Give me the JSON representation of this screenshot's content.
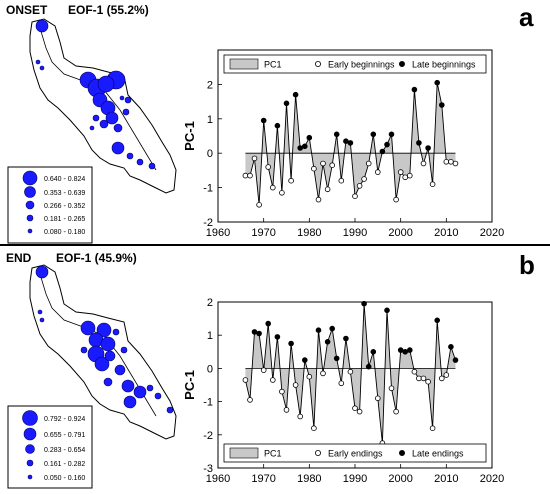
{
  "colors": {
    "marker": "#1a1aff",
    "fill": "#c8c8c8",
    "line": "#000000"
  },
  "chart_data": [
    {
      "type": "area",
      "panel_letter": "a",
      "map_title": "ONSET",
      "eof_label": "EOF-1 (55.2%)",
      "ylabel": "PC-1",
      "xlabel": "",
      "xlim": [
        1960,
        2020
      ],
      "ylim": [
        -2,
        3
      ],
      "x_ticks": [
        "1960",
        "1970",
        "1980",
        "1990",
        "2000",
        "2010",
        "2020"
      ],
      "y_ticks": [
        "-2",
        "-1",
        "0",
        "1",
        "2"
      ],
      "legend": {
        "area": "PC1",
        "open": "Early beginnings",
        "filled": "Late beginnings"
      },
      "map_scale": [
        "0.640 - 0.824",
        "0.353 - 0.639",
        "0.266 - 0.352",
        "0.181 - 0.265",
        "0.080 - 0.180"
      ],
      "series": [
        {
          "x": [
            1966,
            1967,
            1968,
            1969,
            1970,
            1971,
            1972,
            1973,
            1974,
            1975,
            1976,
            1977,
            1978,
            1979,
            1980,
            1981,
            1982,
            1983,
            1984,
            1985,
            1986,
            1987,
            1988,
            1989,
            1990,
            1991,
            1992,
            1993,
            1994,
            1995,
            1996,
            1997,
            1998,
            1999,
            2000,
            2001,
            2002,
            2003,
            2004,
            2005,
            2006,
            2007,
            2008,
            2009,
            2010,
            2011,
            2012
          ],
          "values": [
            -0.65,
            -0.65,
            -0.15,
            -1.5,
            0.95,
            -0.4,
            -1.0,
            0.8,
            -1.15,
            1.45,
            -0.8,
            1.7,
            0.15,
            0.2,
            0.45,
            -0.45,
            -1.35,
            -0.3,
            -1.05,
            -0.35,
            0.55,
            -0.8,
            0.35,
            0.3,
            -1.25,
            -0.95,
            -0.75,
            -0.3,
            0.55,
            -0.55,
            0.05,
            0.25,
            0.55,
            -1.35,
            -0.55,
            -0.7,
            -0.65,
            1.85,
            0.3,
            -0.3,
            0.15,
            -0.9,
            2.05,
            1.4,
            -0.25,
            -0.25,
            -0.3
          ]
        }
      ]
    },
    {
      "type": "area",
      "panel_letter": "b",
      "map_title": "END",
      "eof_label": "EOF-1 (45.9%)",
      "ylabel": "PC-1",
      "xlabel": "",
      "xlim": [
        1960,
        2020
      ],
      "ylim": [
        -3,
        2
      ],
      "x_ticks": [
        "1960",
        "1970",
        "1980",
        "1990",
        "2000",
        "2010",
        "2020"
      ],
      "y_ticks": [
        "-3",
        "-2",
        "-1",
        "0",
        "1",
        "2"
      ],
      "legend": {
        "area": "PC1",
        "open": "Early endings",
        "filled": "Late endings"
      },
      "map_scale": [
        "0.792 - 0.924",
        "0.655 - 0.791",
        "0.283 - 0.654",
        "0.161 - 0.282",
        "0.050 - 0.160"
      ],
      "series": [
        {
          "x": [
            1966,
            1967,
            1968,
            1969,
            1970,
            1971,
            1972,
            1973,
            1974,
            1975,
            1976,
            1977,
            1978,
            1979,
            1980,
            1981,
            1982,
            1983,
            1984,
            1985,
            1986,
            1987,
            1988,
            1989,
            1990,
            1991,
            1992,
            1993,
            1994,
            1995,
            1996,
            1997,
            1998,
            1999,
            2000,
            2001,
            2002,
            2003,
            2004,
            2005,
            2006,
            2007,
            2008,
            2009,
            2010,
            2011,
            2012
          ],
          "values": [
            -0.35,
            -0.95,
            1.1,
            1.05,
            -0.05,
            1.35,
            -0.35,
            0.95,
            -0.7,
            -1.25,
            0.75,
            -0.5,
            -1.45,
            0.25,
            -0.25,
            -1.8,
            1.15,
            -0.15,
            0.8,
            1.2,
            0.3,
            -0.45,
            0.9,
            -0.1,
            -1.2,
            -1.3,
            1.95,
            0.05,
            0.5,
            -0.9,
            -2.25,
            1.75,
            -0.6,
            -1.3,
            0.55,
            0.5,
            0.55,
            -0.1,
            -0.3,
            -0.3,
            -0.4,
            -1.8,
            1.45,
            -0.3,
            -0.2,
            0.65,
            0.25
          ]
        }
      ]
    }
  ]
}
